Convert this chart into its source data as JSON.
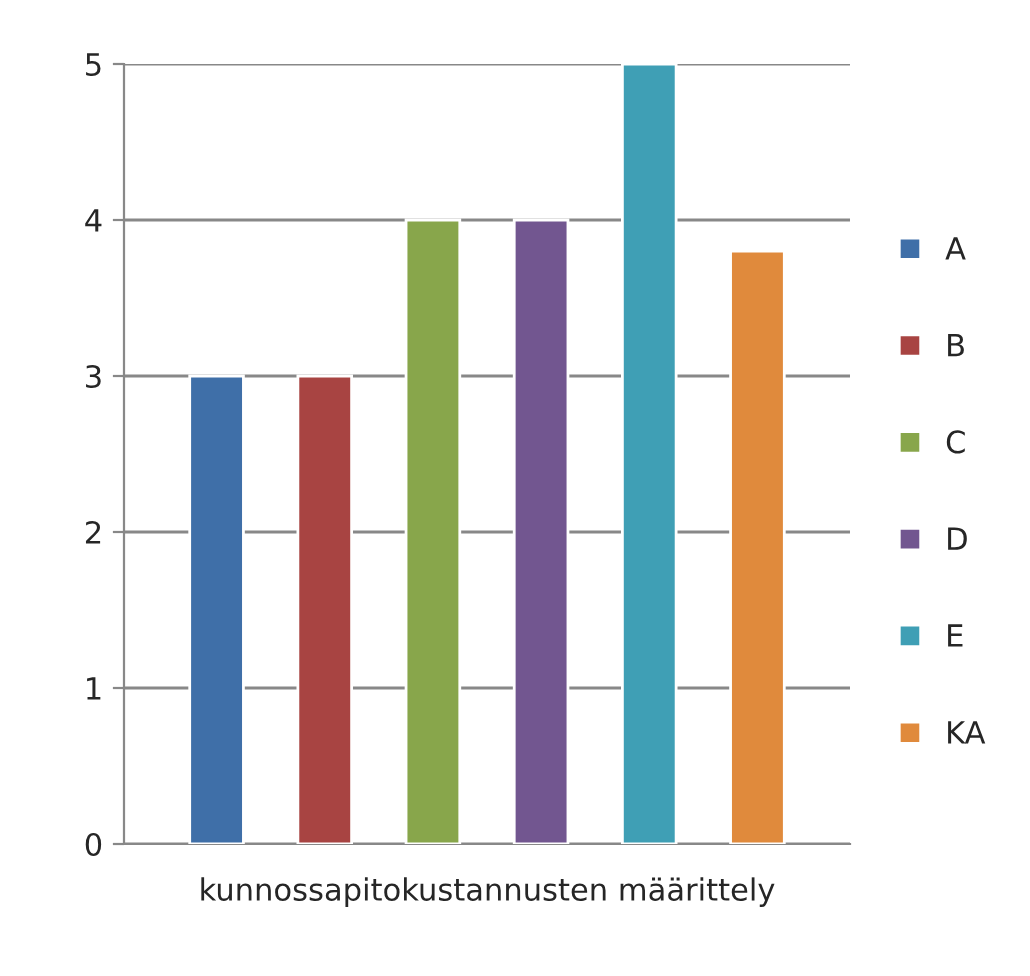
{
  "chart_data": {
    "type": "bar",
    "categories": [
      "kunnossapitokustannusten määrittely"
    ],
    "series": [
      {
        "name": "A",
        "color": "#3f6fa8",
        "values": [
          3
        ]
      },
      {
        "name": "B",
        "color": "#a84442",
        "values": [
          3
        ]
      },
      {
        "name": "C",
        "color": "#88a64b",
        "values": [
          4
        ]
      },
      {
        "name": "D",
        "color": "#725690",
        "values": [
          4
        ]
      },
      {
        "name": "E",
        "color": "#3f9fb5",
        "values": [
          5
        ]
      },
      {
        "name": "KA",
        "color": "#e08a3c",
        "values": [
          3.8
        ]
      }
    ],
    "ylim": [
      0,
      5
    ],
    "yticks": [
      0,
      1,
      2,
      3,
      4,
      5
    ],
    "grid": "y",
    "legend": "right"
  }
}
